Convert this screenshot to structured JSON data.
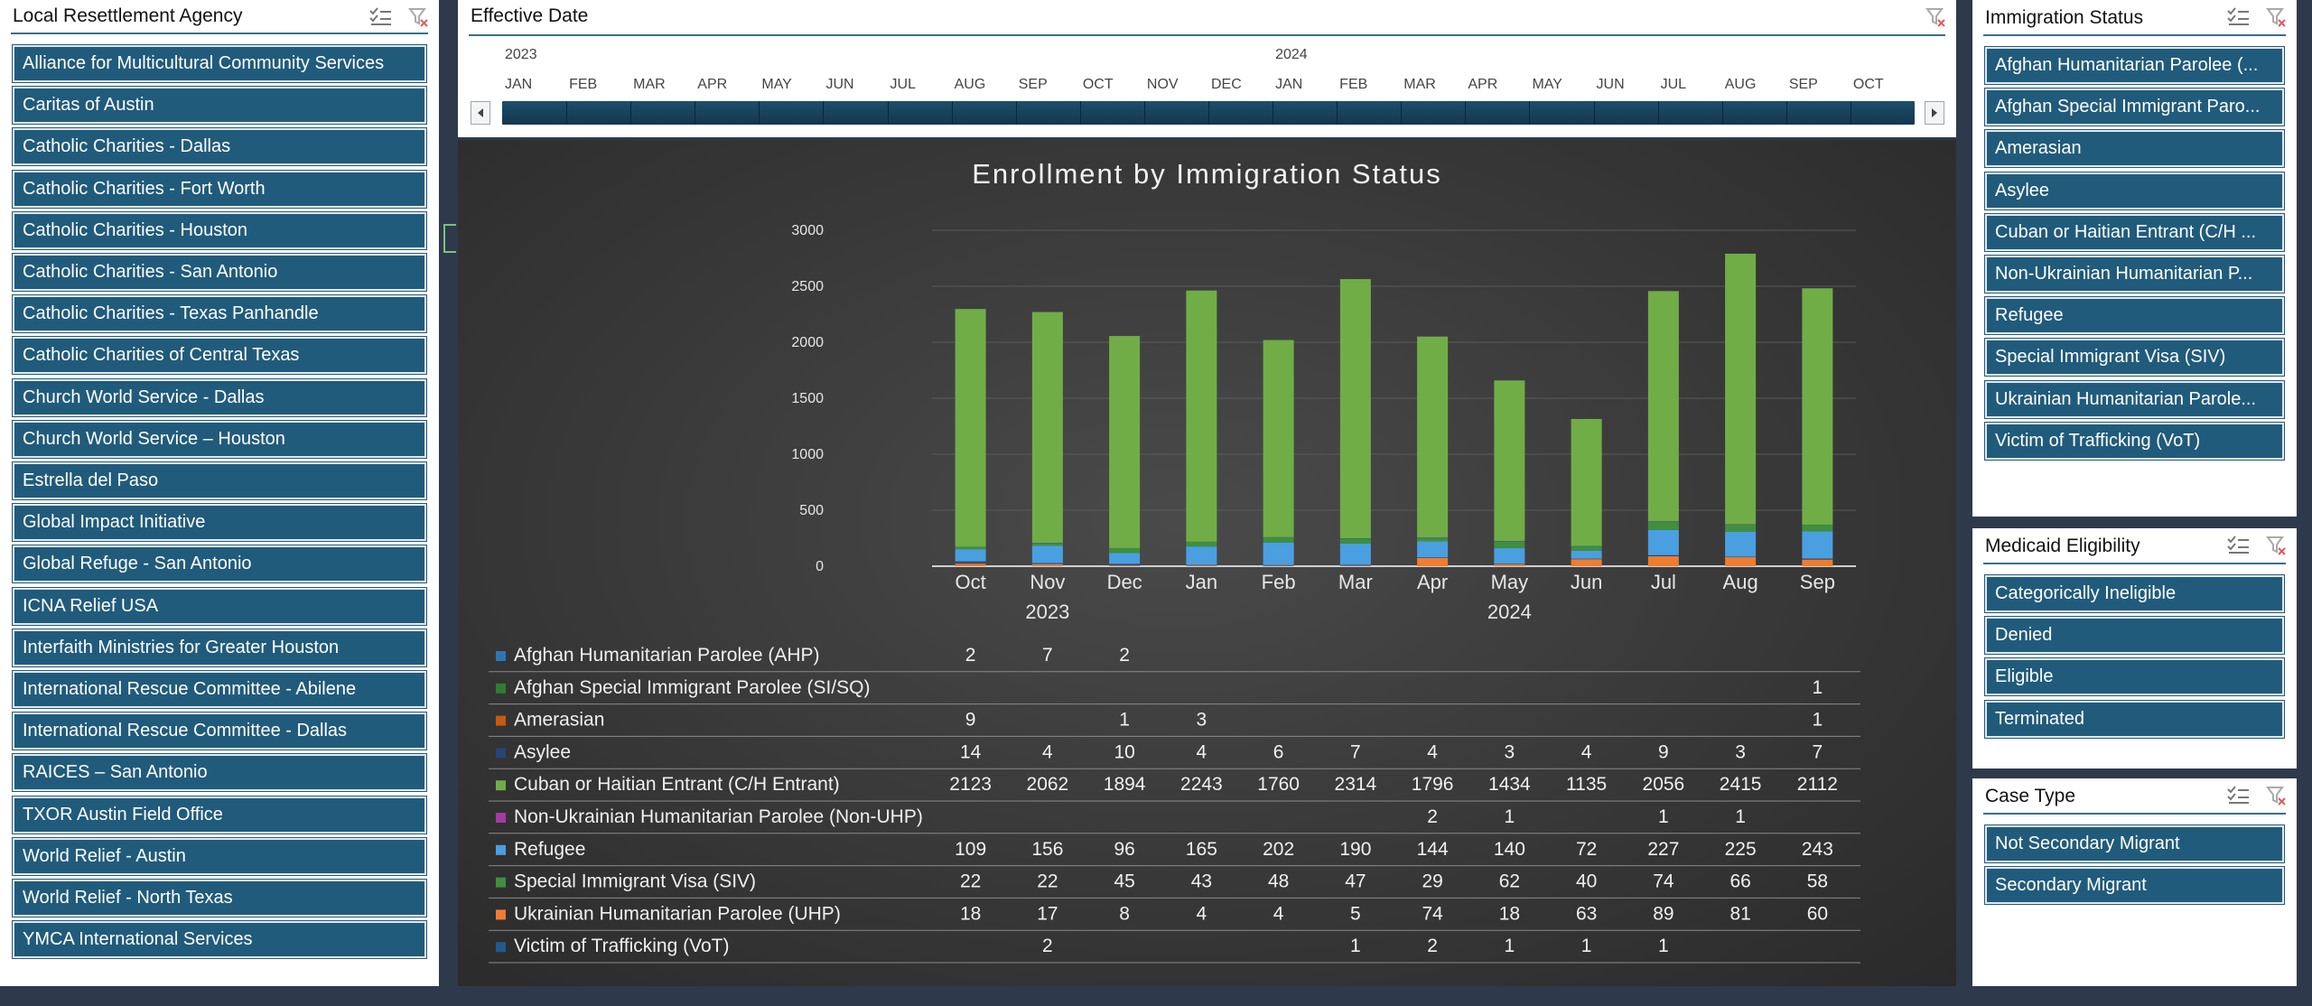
{
  "agency_slicer": {
    "title": "Local Resettlement Agency",
    "items": [
      "Alliance for Multicultural Community Services",
      "Caritas of Austin",
      "Catholic Charities - Dallas",
      "Catholic Charities - Fort Worth",
      "Catholic Charities - Houston",
      "Catholic Charities - San Antonio",
      "Catholic Charities - Texas Panhandle",
      "Catholic Charities of Central Texas",
      "Church World Service - Dallas",
      "Church World Service – Houston",
      "Estrella del Paso",
      "Global Impact Initiative",
      "Global Refuge - San Antonio",
      "ICNA Relief USA",
      "Interfaith Ministries for Greater Houston",
      "International Rescue Committee - Abilene",
      "International Rescue Committee - Dallas",
      "RAICES – San Antonio",
      "TXOR Austin Field Office",
      "World Relief - Austin",
      "World Relief - North Texas",
      "YMCA International Services"
    ]
  },
  "timeline": {
    "title": "Effective Date",
    "years": [
      "2023",
      "2024"
    ],
    "months": [
      "JAN",
      "FEB",
      "MAR",
      "APR",
      "MAY",
      "JUN",
      "JUL",
      "AUG",
      "SEP",
      "OCT",
      "NOV",
      "DEC",
      "JAN",
      "FEB",
      "MAR",
      "APR",
      "MAY",
      "JUN",
      "JUL",
      "AUG",
      "SEP",
      "OCT"
    ]
  },
  "immigration_slicer": {
    "title": "Immigration Status",
    "items": [
      "Afghan Humanitarian Parolee (...",
      "Afghan Special Immigrant Paro...",
      "Amerasian",
      "Asylee",
      "Cuban or Haitian Entrant (C/H ...",
      "Non-Ukrainian Humanitarian P...",
      "Refugee",
      "Special Immigrant Visa (SIV)",
      "Ukrainian Humanitarian Parole...",
      "Victim of Trafficking (VoT)"
    ]
  },
  "medicaid_slicer": {
    "title": "Medicaid Eligibility",
    "items": [
      "Categorically Ineligible",
      "Denied",
      "Eligible",
      "Terminated"
    ]
  },
  "case_slicer": {
    "title": "Case Type",
    "items": [
      "Not Secondary Migrant",
      "Secondary Migrant"
    ]
  },
  "colors": {
    "slicer_button": "#215b7b",
    "timeline_bar": "#1c4e6c",
    "chart_background": "#3a3a3a"
  },
  "chart_data": {
    "type": "bar",
    "stacked": true,
    "title": "Enrollment by Immigration Status",
    "categories": [
      "Oct",
      "Nov",
      "Dec",
      "Jan",
      "Feb",
      "Mar",
      "Apr",
      "May",
      "Jun",
      "Jul",
      "Aug",
      "Sep"
    ],
    "category_groups": [
      {
        "label": "2023",
        "from": 0,
        "to": 2
      },
      {
        "label": "2024",
        "from": 3,
        "to": 11
      }
    ],
    "ylim": [
      0,
      3000
    ],
    "yticks": [
      0,
      500,
      1000,
      1500,
      2000,
      2500,
      3000
    ],
    "grid": true,
    "legend": "data-table",
    "series": [
      {
        "name": "Afghan Humanitarian Parolee (AHP)",
        "color": "#2e75b6",
        "values": [
          2,
          7,
          2,
          null,
          null,
          null,
          null,
          null,
          null,
          null,
          null,
          null
        ]
      },
      {
        "name": "Afghan Special Immigrant Parolee (SI/SQ)",
        "color": "#2e7d32",
        "values": [
          null,
          null,
          null,
          null,
          null,
          null,
          null,
          null,
          null,
          null,
          null,
          1
        ]
      },
      {
        "name": "Amerasian",
        "color": "#c55a11",
        "values": [
          9,
          null,
          1,
          3,
          null,
          null,
          null,
          null,
          null,
          null,
          null,
          1
        ]
      },
      {
        "name": "Asylee",
        "color": "#264478",
        "values": [
          14,
          4,
          10,
          4,
          6,
          7,
          4,
          3,
          4,
          9,
          3,
          7
        ]
      },
      {
        "name": "Cuban or Haitian Entrant (C/H Entrant)",
        "color": "#70ad47",
        "values": [
          2123,
          2062,
          1894,
          2243,
          1760,
          2314,
          1796,
          1434,
          1135,
          2056,
          2415,
          2112
        ]
      },
      {
        "name": "Non-Ukrainian Humanitarian Parolee (Non-UHP)",
        "color": "#a33ba3",
        "values": [
          null,
          null,
          null,
          null,
          null,
          null,
          2,
          1,
          null,
          1,
          1,
          null
        ]
      },
      {
        "name": "Refugee",
        "color": "#4a9fe0",
        "values": [
          109,
          156,
          96,
          165,
          202,
          190,
          144,
          140,
          72,
          227,
          225,
          243
        ]
      },
      {
        "name": "Special Immigrant Visa (SIV)",
        "color": "#3f8f3f",
        "values": [
          22,
          22,
          45,
          43,
          48,
          47,
          29,
          62,
          40,
          74,
          66,
          58
        ]
      },
      {
        "name": "Ukrainian Humanitarian Parolee (UHP)",
        "color": "#ed7d31",
        "values": [
          18,
          17,
          8,
          4,
          4,
          5,
          74,
          18,
          63,
          89,
          81,
          60
        ]
      },
      {
        "name": "Victim of Trafficking (VoT)",
        "color": "#1f5b8c",
        "values": [
          null,
          2,
          null,
          null,
          null,
          1,
          2,
          1,
          1,
          1,
          null,
          null
        ]
      }
    ]
  }
}
